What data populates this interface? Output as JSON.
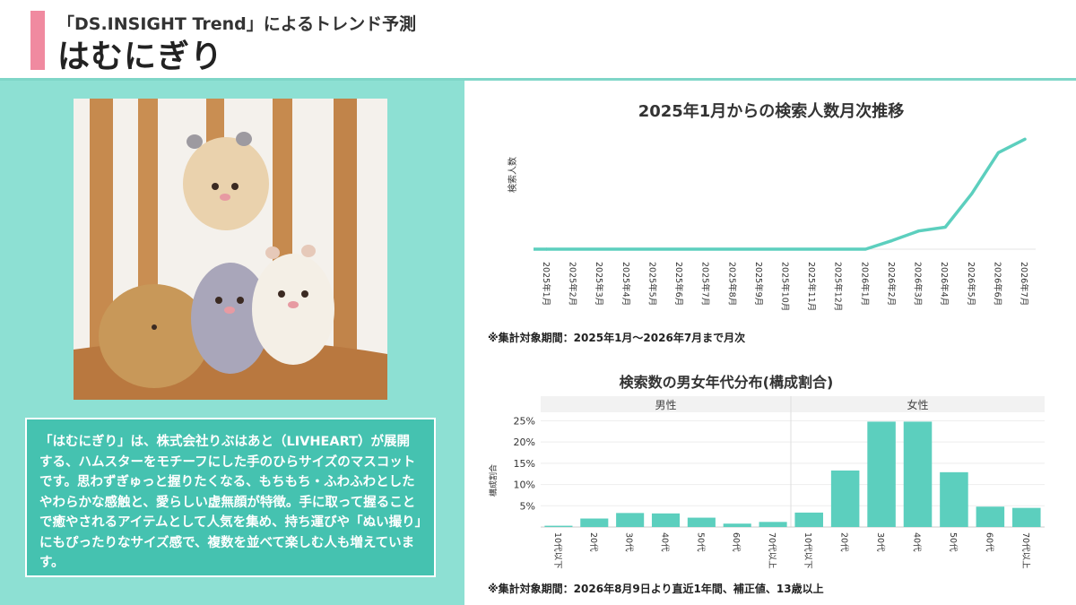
{
  "header": {
    "subtitle": "「DS.INSIGHT Trend」によるトレンド予測",
    "title": "はむにぎり"
  },
  "description": "「はむにぎり」は、株式会社りぶはあと（LIVHEART）が展開する、ハムスターをモチーフにした手のひらサイズのマスコットです。思わずぎゅっと握りたくなる、もちもち・ふわふわとしたやわらかな感触と、愛らしい虚無顔が特徴。手に取って握ることで癒やされるアイテムとして人気を集め、持ち運びや「ぬい撮り」にもぴったりなサイズ感で、複数を並べて楽しむ人も増えています。",
  "colors": {
    "accent": "#f08aa0",
    "teal": "#5ccfbe",
    "panel": "#8de0d3",
    "box": "#45c2b0"
  },
  "chart_data": [
    {
      "type": "line",
      "title": "2025年1月からの検索人数月次推移",
      "ylabel": "検索人数",
      "x": [
        "2025年1月",
        "2025年2月",
        "2025年3月",
        "2025年4月",
        "2025年5月",
        "2025年6月",
        "2025年7月",
        "2025年8月",
        "2025年9月",
        "2025年10月",
        "2025年11月",
        "2025年12月",
        "2026年1月",
        "2026年2月",
        "2026年3月",
        "2026年4月",
        "2026年5月",
        "2026年6月",
        "2026年7月"
      ],
      "values": [
        0,
        0,
        0,
        0,
        0,
        0,
        0,
        0,
        0,
        0,
        0,
        0,
        0,
        9,
        19,
        23,
        58,
        101,
        115
      ],
      "ylim": [
        0,
        120
      ],
      "grid": false,
      "note": "※集計対象期間：2025年1月～2026年7月まで月次"
    },
    {
      "type": "bar",
      "title": "検索数の男女年代分布(構成割合)",
      "ylabel": "構成割合",
      "ylim": [
        0,
        27
      ],
      "yticks": [
        "5%",
        "10%",
        "15%",
        "20%",
        "25%"
      ],
      "yticks_values": [
        5,
        10,
        15,
        20,
        25
      ],
      "categories": [
        "10代以下",
        "20代",
        "30代",
        "40代",
        "50代",
        "60代",
        "70代以上"
      ],
      "series": [
        {
          "name": "男性",
          "values": [
            0.3,
            2.0,
            3.3,
            3.2,
            2.2,
            0.8,
            1.2
          ]
        },
        {
          "name": "女性",
          "values": [
            3.4,
            13.3,
            24.8,
            24.8,
            12.9,
            4.8,
            4.5
          ]
        }
      ],
      "note": "※集計対象期間：2026年8月9日より直近1年間、補正値、13歳以上"
    }
  ]
}
